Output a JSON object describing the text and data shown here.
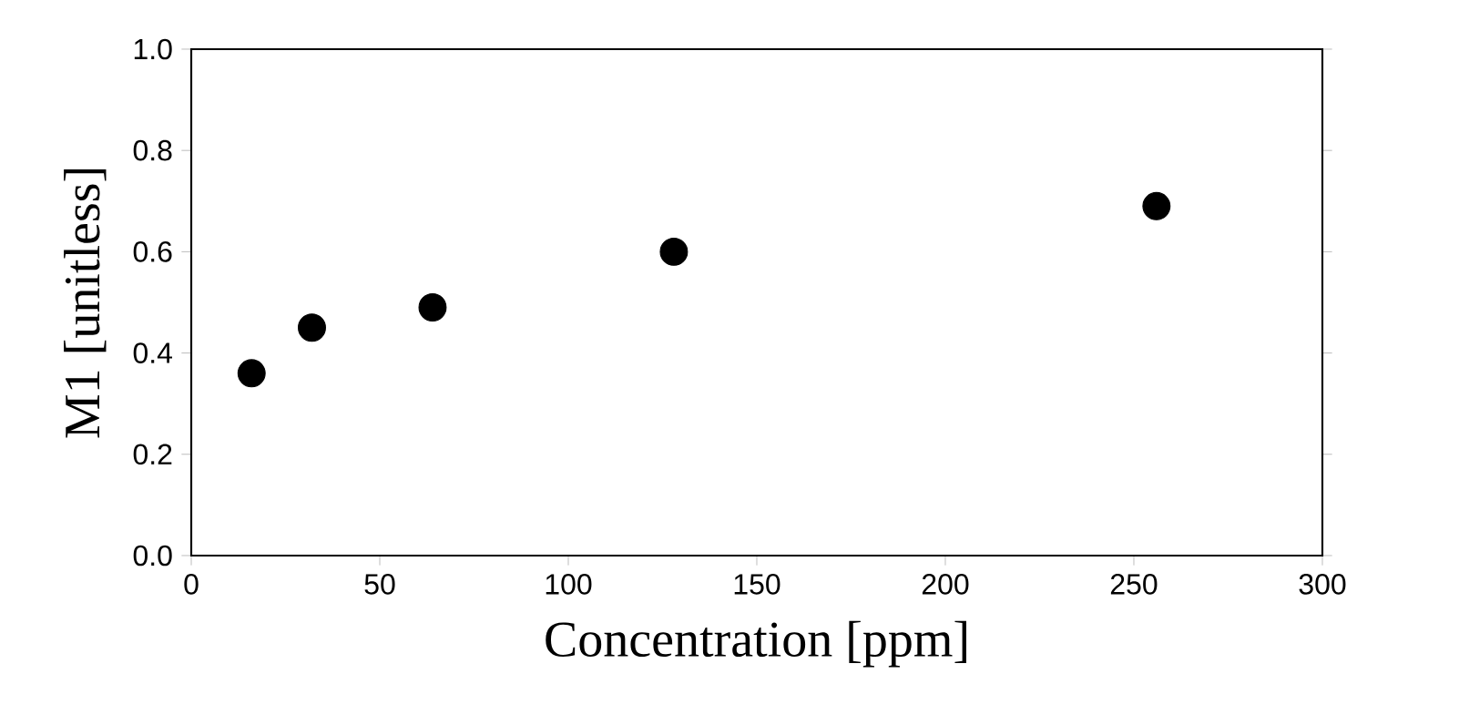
{
  "chart_data": {
    "type": "scatter",
    "xlabel": "Concentration [ppm]",
    "ylabel": "M1 [unitless]",
    "x": [
      16,
      32,
      64,
      128,
      256
    ],
    "series": [
      {
        "color": "#000000",
        "values": [
          0.36,
          0.45,
          0.49,
          0.6,
          0.69
        ]
      }
    ],
    "xlim": [
      0,
      300
    ],
    "xticks": [
      0,
      50,
      100,
      150,
      200,
      250,
      300
    ],
    "ylim": [
      0,
      1.0
    ],
    "yticks": [
      {
        "value": 0,
        "label": "0.0"
      },
      {
        "value": 0.2,
        "label": "0.2"
      },
      {
        "value": 0.4,
        "label": "0.4"
      },
      {
        "value": 0.6,
        "label": "0.6"
      },
      {
        "value": 0.8,
        "label": "0.8"
      },
      {
        "value": 1.0,
        "label": "1.0"
      }
    ],
    "marker": "circle",
    "grid": false
  }
}
